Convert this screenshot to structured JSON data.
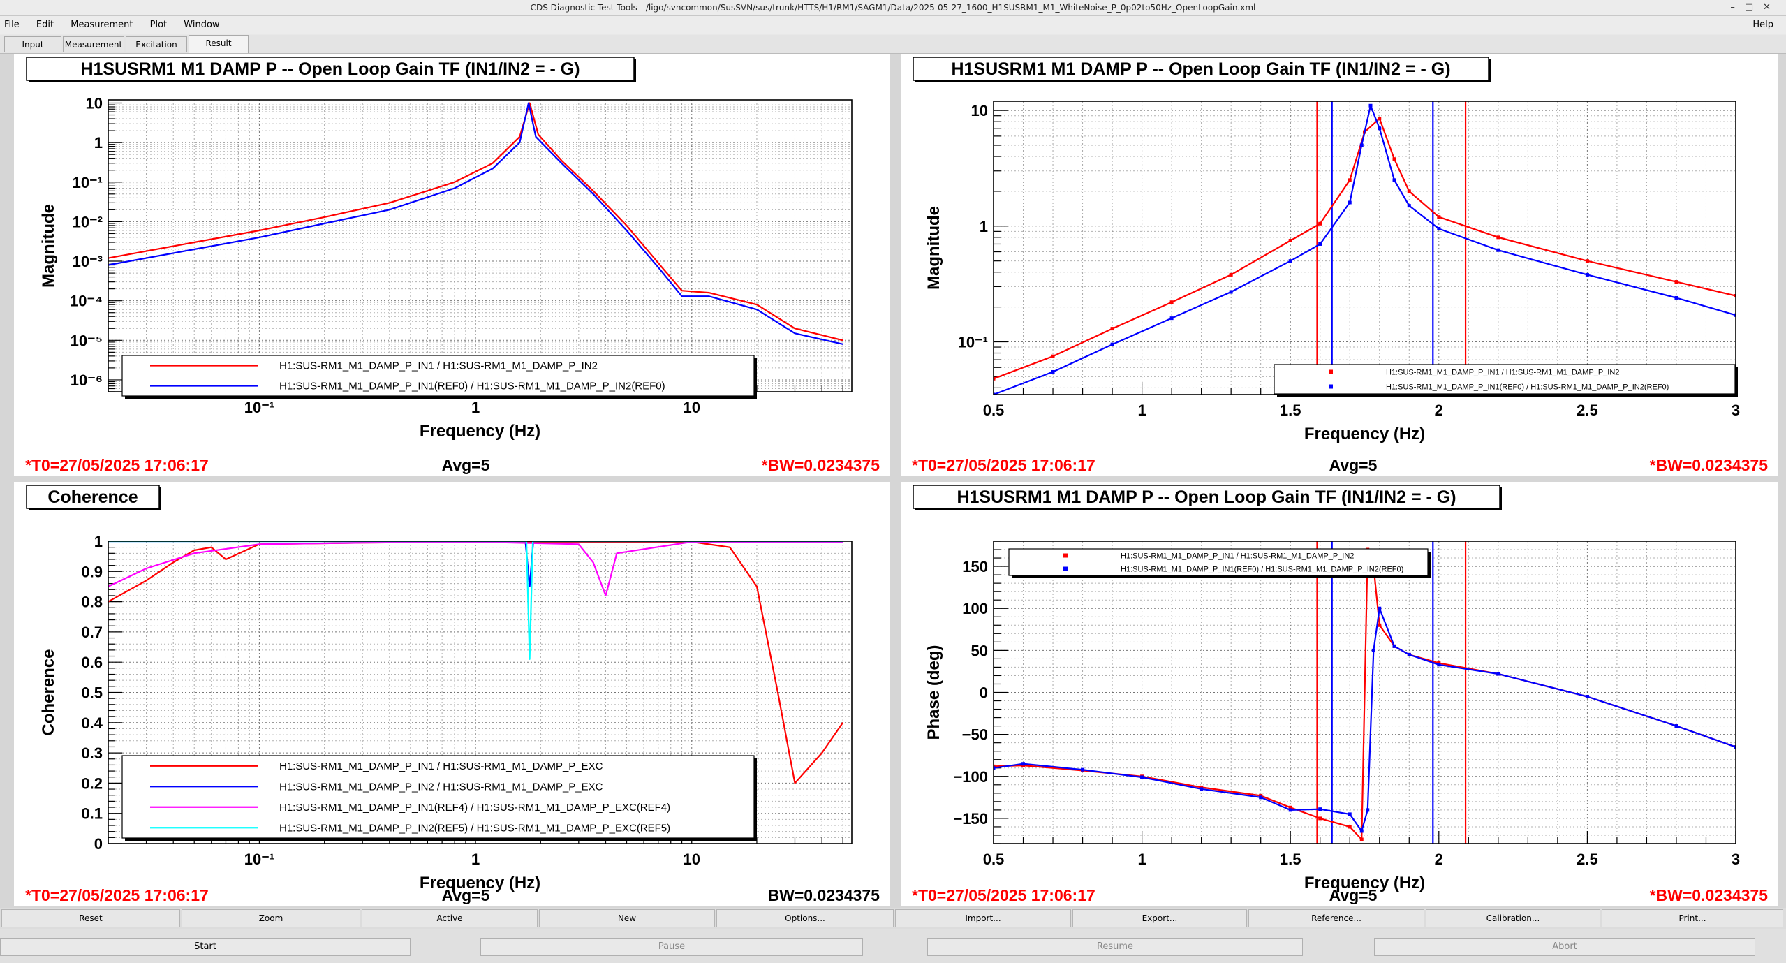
{
  "window": {
    "title": "CDS Diagnostic Test Tools - /ligo/svncommon/SusSVN/sus/trunk/HTTS/H1/RM1/SAGM1/Data/2025-05-27_1600_H1SUSRM1_M1_WhiteNoise_P_0p02to50Hz_OpenLoopGain.xml"
  },
  "menu": {
    "file": "File",
    "edit": "Edit",
    "measurement": "Measurement",
    "plot": "Plot",
    "window": "Window",
    "help": "Help"
  },
  "tabs": {
    "input": "Input",
    "measurement": "Measurement",
    "excitation": "Excitation",
    "result": "Result"
  },
  "toolbar": {
    "reset": "Reset",
    "zoom": "Zoom",
    "active": "Active",
    "new": "New",
    "options": "Options...",
    "import": "Import...",
    "export": "Export...",
    "reference": "Reference...",
    "calibration": "Calibration...",
    "print": "Print..."
  },
  "controls": {
    "start": "Start",
    "pause": "Pause",
    "resume": "Resume",
    "abort": "Abort"
  },
  "colors": {
    "red": "#ff0000",
    "blue": "#0000ff",
    "magenta": "#ff00ff",
    "cyan": "#00ffff"
  },
  "chart_data": [
    {
      "type": "line",
      "title": "H1SUSRM1 M1 DAMP P -- Open Loop Gain TF (IN1/IN2 = - G)",
      "xlabel": "Frequency (Hz)",
      "ylabel": "Magnitude",
      "xscale": "log",
      "yscale": "log",
      "xlim": [
        0.02,
        55
      ],
      "ylim": [
        5e-07,
        12
      ],
      "x_ticks": [
        "10⁻¹",
        "1",
        "10"
      ],
      "y_ticks": [
        "10",
        "1",
        "10⁻¹",
        "10⁻²",
        "10⁻³",
        "10⁻⁴",
        "10⁻⁵",
        "10⁻⁶"
      ],
      "grid": true,
      "legend_position": "bottom-center",
      "series": [
        {
          "name": "H1:SUS-RM1_M1_DAMP_P_IN1 / H1:SUS-RM1_M1_DAMP_P_IN2",
          "color": "#ff0000",
          "x": [
            0.02,
            0.05,
            0.1,
            0.2,
            0.4,
            0.8,
            1.2,
            1.6,
            1.78,
            1.95,
            2.5,
            3.5,
            5,
            7,
            9,
            12,
            20,
            30,
            50
          ],
          "y": [
            0.0012,
            0.003,
            0.006,
            0.013,
            0.03,
            0.1,
            0.3,
            1.4,
            10,
            1.6,
            0.35,
            0.06,
            0.008,
            0.0009,
            0.00018,
            0.00016,
            8e-05,
            2e-05,
            1e-05
          ]
        },
        {
          "name": "H1:SUS-RM1_M1_DAMP_P_IN1(REF0) / H1:SUS-RM1_M1_DAMP_P_IN2(REF0)",
          "color": "#0000ff",
          "x": [
            0.02,
            0.05,
            0.1,
            0.2,
            0.4,
            0.8,
            1.2,
            1.6,
            1.76,
            1.9,
            2.5,
            3.5,
            5,
            7,
            9,
            12,
            20,
            30,
            50
          ],
          "y": [
            0.0008,
            0.002,
            0.004,
            0.009,
            0.02,
            0.07,
            0.22,
            1.0,
            10,
            1.4,
            0.3,
            0.05,
            0.006,
            0.0007,
            0.00013,
            0.00013,
            6e-05,
            1.5e-05,
            8e-06
          ]
        }
      ],
      "footer": {
        "t0": "*T0=27/05/2025 17:06:17",
        "avg": "Avg=5",
        "bw": "*BW=0.0234375"
      }
    },
    {
      "type": "line",
      "title": "H1SUSRM1 M1 DAMP P -- Open Loop Gain TF (IN1/IN2 = - G)",
      "xlabel": "Frequency (Hz)",
      "ylabel": "Magnitude",
      "xscale": "linear",
      "yscale": "log",
      "xlim": [
        0.5,
        3
      ],
      "ylim": [
        0.035,
        12
      ],
      "x_ticks": [
        "0.5",
        "1",
        "1.5",
        "2",
        "2.5",
        "3"
      ],
      "y_ticks": [
        "10",
        "1",
        "10⁻¹"
      ],
      "grid": true,
      "legend_position": "bottom-right",
      "cursors": {
        "red": [
          1.59,
          2.09
        ],
        "blue": [
          1.64,
          1.98
        ]
      },
      "series": [
        {
          "name": "H1:SUS-RM1_M1_DAMP_P_IN1 / H1:SUS-RM1_M1_DAMP_P_IN2",
          "color": "#ff0000",
          "x": [
            0.5,
            0.7,
            0.9,
            1.1,
            1.3,
            1.5,
            1.6,
            1.7,
            1.75,
            1.8,
            1.85,
            1.9,
            2.0,
            2.2,
            2.5,
            2.8,
            3.0
          ],
          "y": [
            0.048,
            0.075,
            0.13,
            0.22,
            0.38,
            0.75,
            1.05,
            2.5,
            6.5,
            8.5,
            3.8,
            2.0,
            1.2,
            0.8,
            0.5,
            0.33,
            0.25
          ]
        },
        {
          "name": "H1:SUS-RM1_M1_DAMP_P_IN1(REF0) / H1:SUS-RM1_M1_DAMP_P_IN2(REF0)",
          "color": "#0000ff",
          "x": [
            0.5,
            0.7,
            0.9,
            1.1,
            1.3,
            1.5,
            1.6,
            1.7,
            1.74,
            1.77,
            1.8,
            1.85,
            1.9,
            2.0,
            2.2,
            2.5,
            2.8,
            3.0
          ],
          "y": [
            0.035,
            0.055,
            0.095,
            0.16,
            0.27,
            0.5,
            0.7,
            1.6,
            5.0,
            11,
            7.0,
            2.5,
            1.5,
            0.95,
            0.62,
            0.38,
            0.24,
            0.17
          ]
        }
      ],
      "footer": {
        "t0": "*T0=27/05/2025 17:06:17",
        "avg": "Avg=5",
        "bw": "*BW=0.0234375"
      }
    },
    {
      "type": "line",
      "title": "Coherence",
      "xlabel": "Frequency (Hz)",
      "ylabel": "Coherence",
      "xscale": "log",
      "yscale": "linear",
      "xlim": [
        0.02,
        55
      ],
      "ylim": [
        0,
        1
      ],
      "x_ticks": [
        "10⁻¹",
        "1",
        "10"
      ],
      "y_ticks": [
        "1",
        "0.9",
        "0.8",
        "0.7",
        "0.6",
        "0.5",
        "0.4",
        "0.3",
        "0.2",
        "0.1",
        "0"
      ],
      "grid": true,
      "legend_position": "bottom-center",
      "series": [
        {
          "name": "H1:SUS-RM1_M1_DAMP_P_IN1 / H1:SUS-RM1_M1_DAMP_P_EXC",
          "color": "#ff0000",
          "x": [
            0.02,
            0.03,
            0.04,
            0.05,
            0.06,
            0.07,
            0.1,
            0.3,
            1,
            3,
            10,
            15,
            20,
            25,
            30,
            40,
            50
          ],
          "y": [
            0.8,
            0.87,
            0.93,
            0.97,
            0.98,
            0.94,
            0.99,
            0.995,
            0.998,
            0.998,
            0.998,
            0.98,
            0.85,
            0.5,
            0.2,
            0.3,
            0.4
          ]
        },
        {
          "name": "H1:SUS-RM1_M1_DAMP_P_IN2 / H1:SUS-RM1_M1_DAMP_P_EXC",
          "color": "#0000ff",
          "x": [
            0.02,
            1.7,
            1.78,
            1.85,
            50
          ],
          "y": [
            1.0,
            1.0,
            0.85,
            1.0,
            1.0
          ]
        },
        {
          "name": "H1:SUS-RM1_M1_DAMP_P_IN1(REF4) / H1:SUS-RM1_M1_DAMP_P_EXC(REF4)",
          "color": "#ff00ff",
          "x": [
            0.02,
            0.03,
            0.05,
            0.1,
            0.3,
            1,
            3,
            3.5,
            4,
            4.5,
            10,
            50
          ],
          "y": [
            0.85,
            0.91,
            0.96,
            0.99,
            0.995,
            0.998,
            0.99,
            0.93,
            0.82,
            0.96,
            0.998,
            0.998
          ]
        },
        {
          "name": "H1:SUS-RM1_M1_DAMP_P_IN2(REF5) / H1:SUS-RM1_M1_DAMP_P_EXC(REF5)",
          "color": "#00ffff",
          "x": [
            0.02,
            1.72,
            1.78,
            1.84,
            50
          ],
          "y": [
            1.0,
            1.0,
            0.61,
            1.0,
            1.0
          ]
        }
      ],
      "footer": {
        "t0": "*T0=27/05/2025 17:06:17",
        "avg": "Avg=5",
        "bw": "BW=0.0234375"
      }
    },
    {
      "type": "line",
      "title": "H1SUSRM1 M1 DAMP P -- Open Loop Gain TF (IN1/IN2 = - G)",
      "xlabel": "Frequency (Hz)",
      "ylabel": "Phase (deg)",
      "xscale": "linear",
      "yscale": "linear",
      "xlim": [
        0.5,
        3
      ],
      "ylim": [
        -180,
        180
      ],
      "x_ticks": [
        "0.5",
        "1",
        "1.5",
        "2",
        "2.5",
        "3"
      ],
      "y_ticks": [
        "150",
        "100",
        "50",
        "0",
        "−50",
        "−100",
        "−150"
      ],
      "grid": true,
      "legend_position": "top-left",
      "cursors": {
        "red": [
          1.59,
          2.09
        ],
        "blue": [
          1.64,
          1.98
        ]
      },
      "series": [
        {
          "name": "H1:SUS-RM1_M1_DAMP_P_IN1 / H1:SUS-RM1_M1_DAMP_P_IN2",
          "color": "#ff0000",
          "x": [
            0.5,
            0.6,
            0.8,
            1.0,
            1.2,
            1.4,
            1.5,
            1.6,
            1.7,
            1.74,
            1.76,
            1.78,
            1.8,
            1.85,
            1.9,
            2.0,
            2.2,
            2.5,
            2.8,
            3.0
          ],
          "y": [
            -88,
            -87,
            -93,
            -100,
            -113,
            -123,
            -137,
            -150,
            -160,
            -175,
            170,
            150,
            80,
            55,
            45,
            35,
            22,
            -5,
            -40,
            -65
          ]
        },
        {
          "name": "H1:SUS-RM1_M1_DAMP_P_IN1(REF0) / H1:SUS-RM1_M1_DAMP_P_IN2(REF0)",
          "color": "#0000ff",
          "x": [
            0.5,
            0.6,
            0.8,
            1.0,
            1.2,
            1.4,
            1.5,
            1.6,
            1.7,
            1.74,
            1.76,
            1.78,
            1.8,
            1.85,
            1.9,
            2.0,
            2.2,
            2.5,
            2.8,
            3.0
          ],
          "y": [
            -90,
            -85,
            -92,
            -101,
            -115,
            -125,
            -140,
            -139,
            -145,
            -165,
            -140,
            50,
            100,
            55,
            45,
            33,
            22,
            -5,
            -40,
            -65
          ]
        }
      ],
      "footer": {
        "t0": "*T0=27/05/2025 17:06:17",
        "avg": "Avg=5",
        "bw": "*BW=0.0234375"
      }
    }
  ]
}
